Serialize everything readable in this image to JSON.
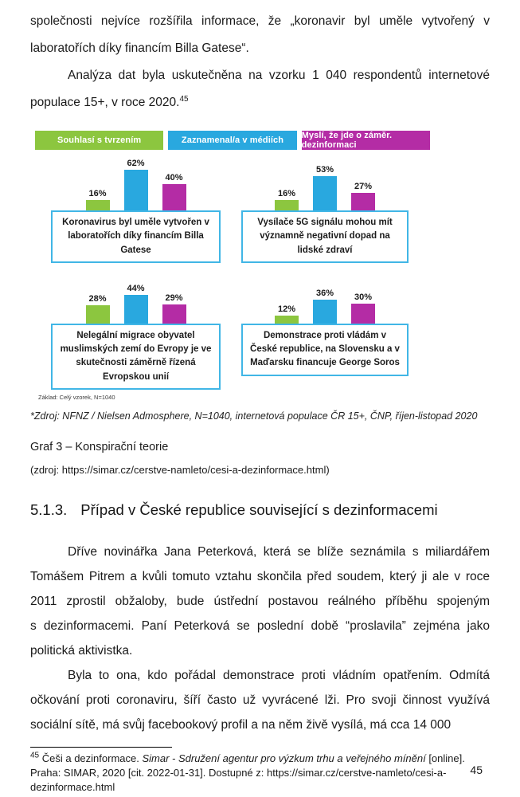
{
  "page": {
    "number": "45"
  },
  "body": {
    "p1": "společnosti nejvíce rozšířila informace, že „koronavir byl uměle vytvořený v laboratořích díky financím Billa Gatese“.",
    "p2": "Analýza dat byla uskutečněna na vzorku 1 040 respondentů internetové populace 15+, v roce 2020.",
    "p2_footnote_ref": "45",
    "p3": "Dříve novinářka Jana Peterková, která se blíže seznámila s miliardářem Tomášem Pitrem a kvůli tomuto vztahu skončila před soudem, který ji ale v roce 2011 zprostil obžaloby, bude ústřední postavou reálného příběhu spojeným s dezinformacemi. Paní Peterková se poslední době “proslavila” zejména jako politická aktivistka.",
    "p4": "Byla to ona, kdo pořádal demonstrace proti vládním opatřením. Odmítá očkování proti coronaviru, šíří často už vyvrácené lži. Pro svoji činnost využívá sociální sítě, má svůj facebookový profil a na něm živě vysílá, má cca 14 000"
  },
  "heading": {
    "number": "5.1.3.",
    "text": "Případ v České republice související s dezinformacemi"
  },
  "figure": {
    "source_note": "*Zdroj: NFNZ / Nielsen Admosphere, N=1040, internetová populace ČR 15+, ČNP, říjen-listopad 2020",
    "caption": "Graf 3 – Konspirační teorie",
    "caption_source": "(zdroj: https://simar.cz/cerstve-namleto/cesi-a-dezinformace.html)"
  },
  "chart_data": {
    "type": "bar",
    "title": "",
    "legend_position": "top",
    "value_suffix": "%",
    "ylim": [
      0,
      70
    ],
    "box_border_color": "#41B6E6",
    "series": [
      {
        "name": "Souhlasí s tvrzením",
        "color": "#8CC63F"
      },
      {
        "name": "Zaznamenal/a v médiích",
        "color": "#29A8DF"
      },
      {
        "name": "Myslí, že jde o záměr. dezinformaci",
        "color": "#B42CA5"
      }
    ],
    "groups": [
      {
        "label": "Koronavirus byl uměle vytvořen v laboratořích díky financím Billa Gatese",
        "values": [
          16,
          62,
          40
        ]
      },
      {
        "label": "Vysílače 5G signálu mohou mít významně negativní dopad na lidské zdraví",
        "values": [
          16,
          53,
          27
        ]
      },
      {
        "label": "Nelegální migrace obyvatel muslimských zemí do Evropy je ve skutečnosti záměrně řízená Evropskou unií",
        "values": [
          28,
          44,
          29
        ]
      },
      {
        "label": "Demonstrace proti vládám v České republice, na Slovensku a v Maďarsku financuje George Soros",
        "values": [
          12,
          36,
          30
        ]
      }
    ],
    "note": "Základ: Celý vzorek, N=1040"
  },
  "footnote": {
    "ref": "45",
    "text_before": " Češi a dezinformace. ",
    "italic_source": "Simar - Sdružení agentur pro výzkum trhu a veřejného mínění",
    "text_after": " [online]. Praha: SIMAR, 2020 [cit. 2022-01-31]. Dostupné z: https://simar.cz/cerstve-namleto/cesi-a-dezinformace.html"
  }
}
